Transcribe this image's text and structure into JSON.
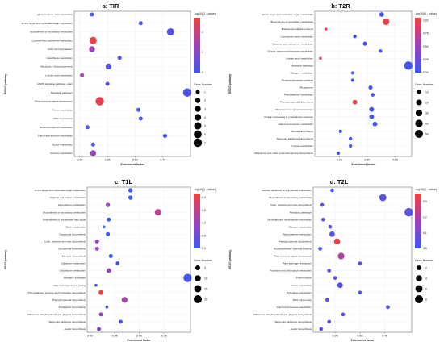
{
  "chart_data": [
    {
      "type": "scatter",
      "title": "a: TIR",
      "xlabel": "Enrichment factor",
      "ylabel": "KEGG pathway",
      "xlim": [
        -0.05,
        1.0
      ],
      "xticks": [
        "0.00",
        "0.25",
        "0.50",
        "0.75"
      ],
      "xtick_values": [
        0,
        0.25,
        0.5,
        0.75
      ],
      "color_legend_title": "-log10(Q - value)",
      "color_range": [
        0,
        2.7
      ],
      "color_ticks": [
        "0",
        "1",
        "2"
      ],
      "color_tick_values": [
        0,
        1,
        2
      ],
      "size_legend_title": "Gene Number",
      "size_legend": [
        1,
        2,
        3,
        4,
        5,
        6,
        7
      ],
      "size_max": 7,
      "categories": [
        "alpha-Linolenic acid metabolism",
        "Amino sugar and nucleotide sugar metabolism",
        "Biosynthesis of secondary metabolites",
        "Cysteine and methionine metabolism",
        "Fatty acid degradation",
        "Glutathione metabolism",
        "Glycolysis / Gluconeogenesis",
        "Linoleic acid metabolism",
        "MAPK signaling pathway - plant",
        "Metabolic pathways",
        "Plant hormone signal transduction",
        "Purine metabolism",
        "RNA degradation",
        "Selenocompound metabolism",
        "Starch and sucrose metabolism",
        "Sulfur metabolism",
        "Tyrosine metabolism"
      ],
      "points": [
        {
          "x": 0.11,
          "size": 1,
          "q": 0.2
        },
        {
          "x": 0.55,
          "size": 1,
          "q": 0.3
        },
        {
          "x": 0.82,
          "size": 5,
          "q": 0.3
        },
        {
          "x": 0.12,
          "size": 5,
          "q": 2.6
        },
        {
          "x": 0.11,
          "size": 3,
          "q": 1.3
        },
        {
          "x": 0.36,
          "size": 1,
          "q": 0.3
        },
        {
          "x": 0.26,
          "size": 3,
          "q": 0.4
        },
        {
          "x": 0.02,
          "size": 1,
          "q": 1.4
        },
        {
          "x": 0.25,
          "size": 1,
          "q": 0.3
        },
        {
          "x": 0.97,
          "size": 7,
          "q": 0.3
        },
        {
          "x": 0.18,
          "size": 7,
          "q": 2.5
        },
        {
          "x": 0.53,
          "size": 1,
          "q": 0.2
        },
        {
          "x": 0.55,
          "size": 1,
          "q": 0.2
        },
        {
          "x": 0.07,
          "size": 1,
          "q": 0.2
        },
        {
          "x": 0.77,
          "size": 1,
          "q": 0.2
        },
        {
          "x": 0.12,
          "size": 1,
          "q": 0.3
        },
        {
          "x": 0.12,
          "size": 3,
          "q": 1.2
        }
      ]
    },
    {
      "type": "scatter",
      "title": "b: T2R",
      "xlabel": "Enrichment factor",
      "ylabel": "KEGG pathway",
      "xlim": [
        0.03,
        0.9
      ],
      "xticks": [
        "0.25",
        "0.50",
        "0.75"
      ],
      "xtick_values": [
        0.25,
        0.5,
        0.75
      ],
      "color_legend_title": "-log10(Q - value)",
      "color_range": [
        0,
        1.05
      ],
      "color_ticks": [
        "0.00",
        "0.25",
        "0.50",
        "0.75",
        "1.00"
      ],
      "color_tick_values": [
        0,
        0.25,
        0.5,
        0.75,
        1.0
      ],
      "size_legend_title": "Gene Number",
      "size_legend": [
        10,
        20,
        30,
        40,
        50
      ],
      "size_max": 55,
      "categories": [
        "Amino sugar and nucleotide sugar metabolism",
        "Biosynthesis of secondary metabolites",
        "Brassinosteroid biosynthesis",
        "Cyanoamino acid metabolism",
        "Cysteine and methionine metabolism",
        "Glycine, serine and threonine metabolism",
        "Linoleic acid metabolism",
        "Metabolic pathways",
        "Nitrogen metabolism",
        "Pentose phosphate pathway",
        "Phagosome",
        "Phenylalanine metabolism",
        "Phenylpropanoid biosynthesis",
        "Plant hormone signal transduction",
        "Protein processing in endoplasmic reticulum",
        "Starch and sucrose metabolism",
        "Steroid biosynthesis",
        "Terpenoid backbone biosynthesis",
        "Tyrosine metabolism",
        "Ubiquinone and other terpenoid-quinone biosynthesis"
      ],
      "points": [
        {
          "x": 0.63,
          "size": 12,
          "q": 0.05
        },
        {
          "x": 0.67,
          "size": 30,
          "q": 1.0
        },
        {
          "x": 0.13,
          "size": 2,
          "q": 0.95
        },
        {
          "x": 0.39,
          "size": 5,
          "q": 0.05
        },
        {
          "x": 0.48,
          "size": 8,
          "q": 0.05
        },
        {
          "x": 0.62,
          "size": 5,
          "q": 0.05
        },
        {
          "x": 0.08,
          "size": 2,
          "q": 0.95
        },
        {
          "x": 0.87,
          "size": 55,
          "q": 0.05
        },
        {
          "x": 0.37,
          "size": 4,
          "q": 0.05
        },
        {
          "x": 0.37,
          "size": 4,
          "q": 0.05
        },
        {
          "x": 0.53,
          "size": 8,
          "q": 0.05
        },
        {
          "x": 0.55,
          "size": 6,
          "q": 0.05
        },
        {
          "x": 0.39,
          "size": 12,
          "q": 1.0
        },
        {
          "x": 0.54,
          "size": 14,
          "q": 0.05
        },
        {
          "x": 0.54,
          "size": 12,
          "q": 0.05
        },
        {
          "x": 0.57,
          "size": 12,
          "q": 0.05
        },
        {
          "x": 0.26,
          "size": 4,
          "q": 0.05
        },
        {
          "x": 0.35,
          "size": 5,
          "q": 0.05
        },
        {
          "x": 0.35,
          "size": 4,
          "q": 0.05
        },
        {
          "x": 0.24,
          "size": 4,
          "q": 0.05
        }
      ]
    },
    {
      "type": "scatter",
      "title": "c: T1L",
      "xlabel": "Enrichment factor",
      "ylabel": "KEGG pathway",
      "xlim": [
        -0.03,
        1.02
      ],
      "xticks": [
        "0.00",
        "0.25",
        "0.50",
        "0.75"
      ],
      "xtick_values": [
        0,
        0.25,
        0.5,
        0.75
      ],
      "color_legend_title": "-log10(Q - value)",
      "color_range": [
        0,
        2.15
      ],
      "color_ticks": [
        "0.0",
        "0.5",
        "1.0",
        "1.5",
        "2.0"
      ],
      "color_tick_values": [
        0,
        0.5,
        1.0,
        1.5,
        2.0
      ],
      "size_legend_title": "Gene Number",
      "size_legend": [
        5,
        10,
        15,
        20
      ],
      "size_max": 22,
      "categories": [
        "Amino sugar and nucleotide sugar metabolism",
        "Arginine and proline metabolism",
        "beta-Alanine metabolism",
        "Biosynthesis of secondary metabolites",
        "Biosynthesis of unsaturated fatty acids",
        "Biotin metabolism",
        "Carotenoid biosynthesis",
        "Cutin, suberine and wax biosynthesis",
        "Diterpenoid biosynthesis",
        "Fatty acid biosynthesis",
        "Galactose metabolism",
        "Glutathione metabolism",
        "Metabolic pathways",
        "Non-homologous end-joining",
        "Phenylalanine, tyrosine and tryptophan biosynthesis",
        "Phenylpropanoid biosynthesis",
        "Prodigiosin biosynthesis",
        "Stilbenoid, diarylheptanoid and gingerol biosynthesis",
        "Terpenoid backbone biosynthesis",
        "Zeatin biosynthesis"
      ],
      "points": [
        {
          "x": 0.41,
          "size": 4,
          "q": 0.1
        },
        {
          "x": 0.41,
          "size": 4,
          "q": 0.1
        },
        {
          "x": 0.18,
          "size": 4,
          "q": 1.0
        },
        {
          "x": 0.69,
          "size": 12,
          "q": 1.4
        },
        {
          "x": 0.19,
          "size": 3,
          "q": 0.1
        },
        {
          "x": 0.14,
          "size": 1,
          "q": 0.1
        },
        {
          "x": 0.18,
          "size": 3,
          "q": 0.1
        },
        {
          "x": 0.07,
          "size": 3,
          "q": 1.0
        },
        {
          "x": 0.07,
          "size": 3,
          "q": 1.0
        },
        {
          "x": 0.21,
          "size": 3,
          "q": 0.1
        },
        {
          "x": 0.28,
          "size": 3,
          "q": 0.1
        },
        {
          "x": 0.19,
          "size": 5,
          "q": 1.0
        },
        {
          "x": 0.99,
          "size": 21,
          "q": 0.1
        },
        {
          "x": 0.06,
          "size": 1,
          "q": 0.1
        },
        {
          "x": 0.11,
          "size": 5,
          "q": 2.1
        },
        {
          "x": 0.35,
          "size": 9,
          "q": 1.2
        },
        {
          "x": 0.17,
          "size": 1,
          "q": 0.1
        },
        {
          "x": 0.11,
          "size": 3,
          "q": 1.0
        },
        {
          "x": 0.31,
          "size": 3,
          "q": 0.1
        },
        {
          "x": 0.09,
          "size": 3,
          "q": 1.0
        }
      ]
    },
    {
      "type": "scatter",
      "title": "d: T2L",
      "xlabel": "Enrichment factor",
      "ylabel": "KEGG pathway",
      "xlim": [
        0.03,
        1.02
      ],
      "xticks": [
        "0.25",
        "0.50",
        "0.75"
      ],
      "xtick_values": [
        0.25,
        0.5,
        0.75
      ],
      "color_legend_title": "-log10(Q - value)",
      "color_range": [
        0,
        0.35
      ],
      "color_ticks": [
        "0.0",
        "0.1",
        "0.2",
        "0.3"
      ],
      "color_tick_values": [
        0,
        0.1,
        0.2,
        0.3
      ],
      "size_legend_title": "Gene Number",
      "size_legend": [
        2,
        4,
        6,
        8
      ],
      "size_max": 9,
      "categories": [
        "Alanine, aspartate and glutamate metabolism",
        "Biosynthesis of secondary metabolites",
        "Cutin, suberine and wax biosynthesis",
        "Metabolic pathways",
        "Nicotinate and nicotinamide metabolism",
        "Nitrogen metabolism",
        "Phenylalanine metabolism",
        "Phenylpropanoid biosynthesis",
        "Photosynthesis - antenna proteins",
        "Plant hormone signal transduction",
        "Plant-pathogen interaction",
        "Porphyrin and chlorophyll metabolism",
        "Protein export",
        "Purine metabolism",
        "Pyrimidine metabolism",
        "RNA polymerase",
        "Starch and sucrose metabolism",
        "Stilbenoid, diarylheptanoid and gingerol biosynthesis",
        "Terpenoid backbone biosynthesis",
        "Zeatin biosynthesis"
      ],
      "points": [
        {
          "x": 0.22,
          "size": 1,
          "q": 0.05
        },
        {
          "x": 0.73,
          "size": 6,
          "q": 0.05
        },
        {
          "x": 0.12,
          "size": 1,
          "q": 0.05
        },
        {
          "x": 0.99,
          "size": 9,
          "q": 0.05
        },
        {
          "x": 0.13,
          "size": 1,
          "q": 0.05
        },
        {
          "x": 0.2,
          "size": 1,
          "q": 0.05
        },
        {
          "x": 0.22,
          "size": 3,
          "q": 0.05
        },
        {
          "x": 0.27,
          "size": 4,
          "q": 0.33
        },
        {
          "x": 0.1,
          "size": 1,
          "q": 0.05
        },
        {
          "x": 0.31,
          "size": 5,
          "q": 0.2
        },
        {
          "x": 0.5,
          "size": 1,
          "q": 0.05
        },
        {
          "x": 0.19,
          "size": 1,
          "q": 0.05
        },
        {
          "x": 0.25,
          "size": 1,
          "q": 0.05
        },
        {
          "x": 0.3,
          "size": 3,
          "q": 0.05
        },
        {
          "x": 0.5,
          "size": 1,
          "q": 0.05
        },
        {
          "x": 0.17,
          "size": 1,
          "q": 0.05
        },
        {
          "x": 0.78,
          "size": 1,
          "q": 0.05
        },
        {
          "x": 0.33,
          "size": 1,
          "q": 0.05
        },
        {
          "x": 0.19,
          "size": 1,
          "q": 0.05
        },
        {
          "x": 0.11,
          "size": 1,
          "q": 0.05
        }
      ]
    }
  ]
}
